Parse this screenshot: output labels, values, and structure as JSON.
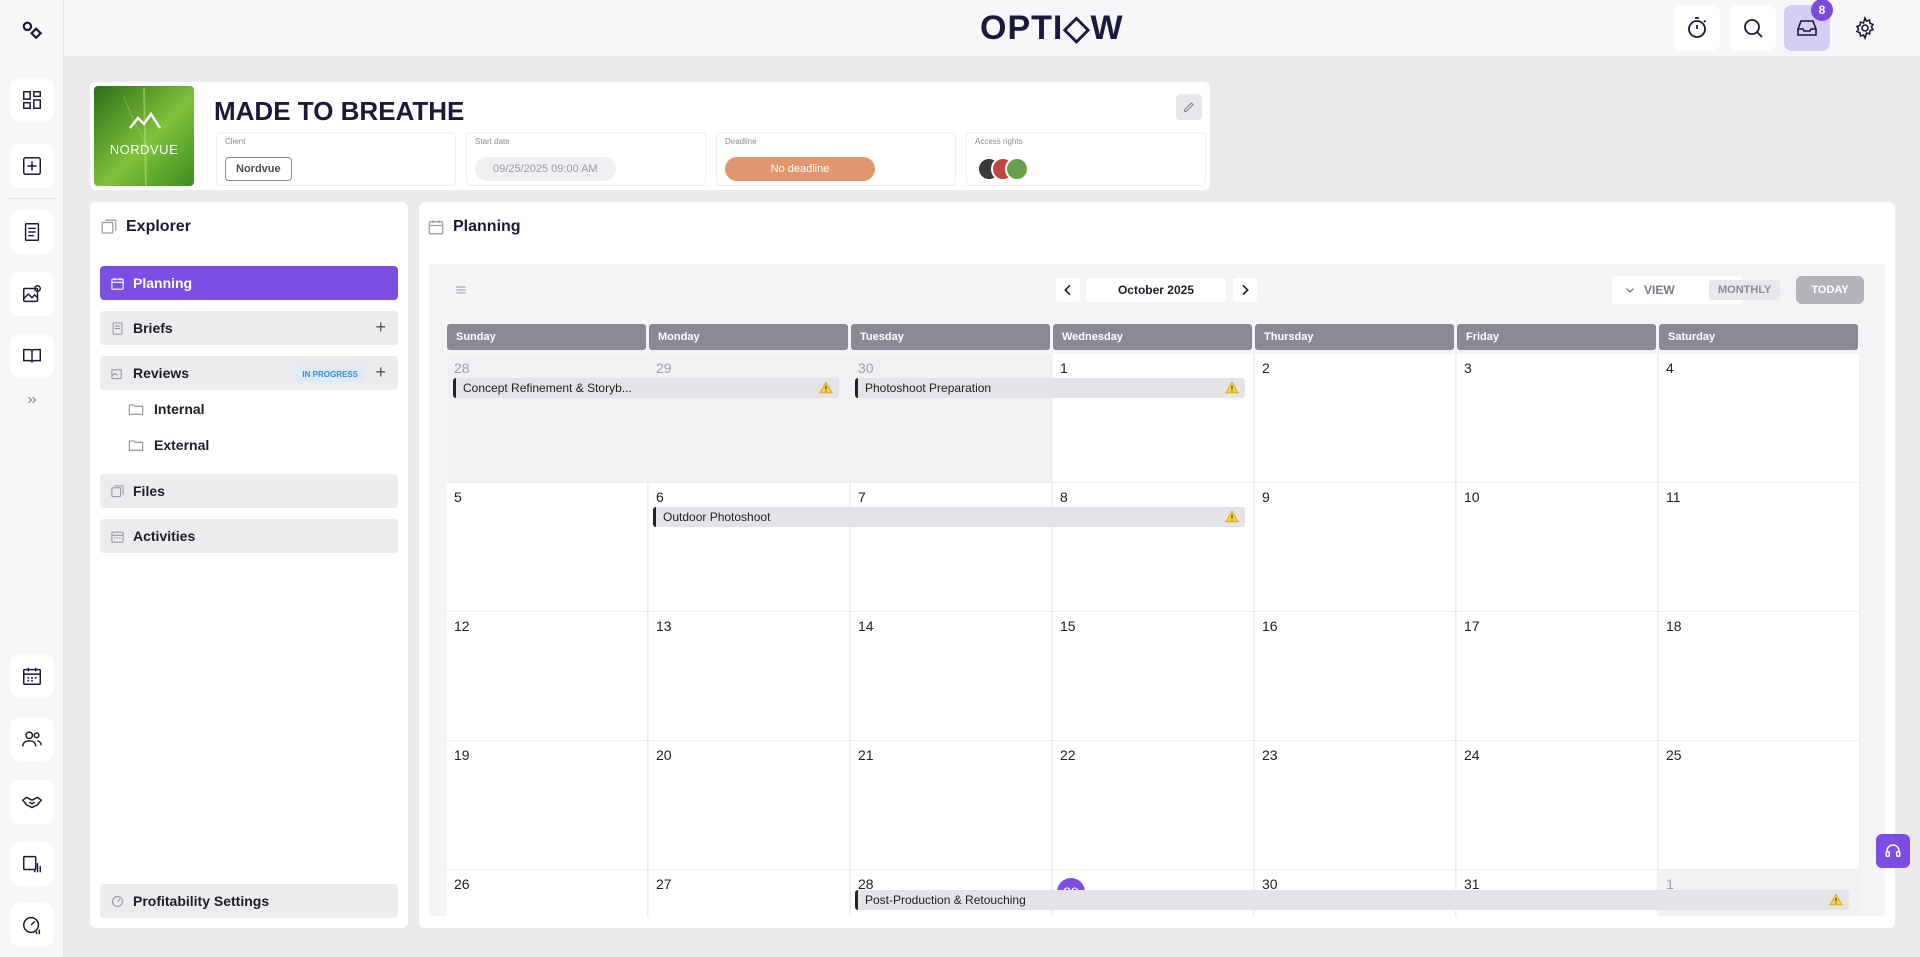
{
  "app": {
    "logo": "OPTI◇W"
  },
  "topbar": {
    "timer_icon": "stopwatch-icon",
    "search_icon": "search-icon",
    "inbox_icon": "inbox-icon",
    "inbox_count": "8",
    "settings_icon": "gear-icon"
  },
  "project": {
    "title": "MADE TO BREATHE",
    "brand_text": "NORDVUE",
    "fields": {
      "client_label": "Client",
      "client_value": "Nordvue",
      "start_label": "Start date",
      "start_value": "09/25/2025 09:00 AM",
      "deadline_label": "Deadline",
      "deadline_value": "No deadline",
      "access_label": "Access rights"
    },
    "colors": {
      "deadline": "#e0976e"
    }
  },
  "explorer": {
    "title": "Explorer",
    "items": [
      {
        "label": "Planning"
      },
      {
        "label": "Briefs"
      },
      {
        "label": "Reviews",
        "status": "IN PROGRESS"
      },
      {
        "label": "Internal"
      },
      {
        "label": "External"
      },
      {
        "label": "Files"
      },
      {
        "label": "Activities"
      }
    ],
    "profitability": "Profitability Settings"
  },
  "planning": {
    "title": "Planning",
    "month": "October 2025",
    "view_label": "VIEW",
    "view_mode": "MONTHLY",
    "today_label": "TODAY",
    "weekdays": [
      "Sunday",
      "Monday",
      "Tuesday",
      "Wednesday",
      "Thursday",
      "Friday",
      "Saturday"
    ],
    "weeks": [
      [
        "28",
        "29",
        "30",
        "1",
        "2",
        "3",
        "4"
      ],
      [
        "5",
        "6",
        "7",
        "8",
        "9",
        "10",
        "11"
      ],
      [
        "12",
        "13",
        "14",
        "15",
        "16",
        "17",
        "18"
      ],
      [
        "19",
        "20",
        "21",
        "22",
        "23",
        "24",
        "25"
      ],
      [
        "26",
        "27",
        "28",
        "29",
        "30",
        "31",
        "1"
      ]
    ],
    "events": [
      {
        "title": "Concept Refinement & Storyb..."
      },
      {
        "title": "Photoshoot Preparation"
      },
      {
        "title": "Outdoor Photoshoot"
      },
      {
        "title": "Post-Production & Retouching"
      }
    ]
  },
  "accent": "#7c4ee4"
}
